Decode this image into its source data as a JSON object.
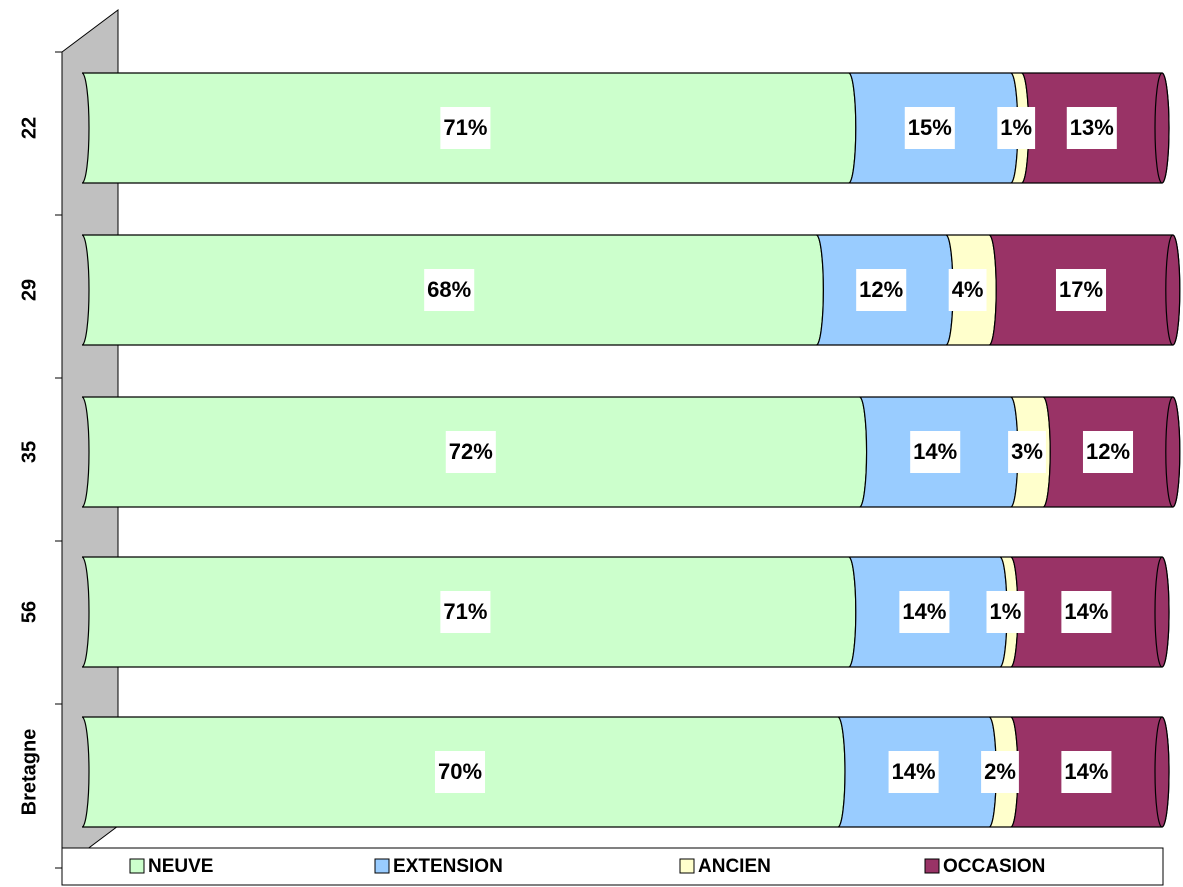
{
  "chart_data": {
    "type": "bar",
    "stacked": true,
    "orientation": "horizontal",
    "categories": [
      "22",
      "29",
      "35",
      "56",
      "Bretagne"
    ],
    "xlim": [
      0,
      100
    ],
    "legend": "bottom",
    "series": [
      {
        "name": "NEUVE",
        "color": "#ccffcc",
        "values": [
          71,
          68,
          72,
          71,
          70
        ],
        "value_labels": [
          "71%",
          "68%",
          "72%",
          "71%",
          "70%"
        ]
      },
      {
        "name": "EXTENSION",
        "color": "#99ccff",
        "values": [
          15,
          12,
          14,
          14,
          14
        ],
        "value_labels": [
          "15%",
          "12%",
          "14%",
          "14%",
          "14%"
        ]
      },
      {
        "name": "ANCIEN",
        "color": "#ffffcc",
        "values": [
          1,
          4,
          3,
          1,
          2
        ],
        "value_labels": [
          "1%",
          "4%",
          "3%",
          "1%",
          "2%"
        ]
      },
      {
        "name": "OCCASION",
        "color": "#993366",
        "values": [
          13,
          17,
          12,
          14,
          14
        ],
        "value_labels": [
          "13%",
          "17%",
          "12%",
          "14%",
          "14%"
        ]
      }
    ]
  }
}
